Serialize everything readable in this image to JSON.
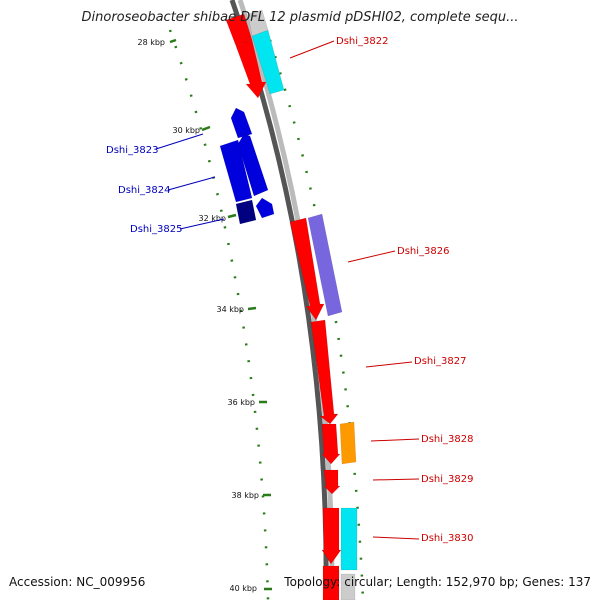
{
  "title": "Dinoroseobacter shibae DFL 12 plasmid pDSHI02, complete sequ...",
  "footer": {
    "accession": "Accession: NC_009956",
    "topology": "Topology: circular; Length: 152,970 bp; Genes: 137"
  },
  "colors": {
    "backbone_outer": "#555555",
    "backbone_inner": "#bbbbbb",
    "tick_marks": "#2a7a1a",
    "forward_label": "#cc0000",
    "reverse_label": "#0000bb",
    "red_gene": "#ff0000",
    "cyan_feature": "#00e5f0",
    "purple_feature": "#7766dd",
    "orange_feature": "#ff9900",
    "blue_gene": "#0000dd",
    "navy_gene": "#000080"
  },
  "ticks": [
    "28 kbp",
    "30 kbp",
    "32 kbp",
    "34 kbp",
    "36 kbp",
    "38 kbp",
    "40 kbp"
  ],
  "genes": [
    {
      "name": "Dshi_3822",
      "strand": "forward",
      "color": "#ff0000",
      "track": "cyan"
    },
    {
      "name": "Dshi_3823",
      "strand": "reverse",
      "color": "#0000dd"
    },
    {
      "name": "Dshi_3824",
      "strand": "reverse",
      "color": "#0000dd"
    },
    {
      "name": "Dshi_3825",
      "strand": "reverse",
      "color": "#000080"
    },
    {
      "name": "Dshi_3826",
      "strand": "forward",
      "color": "#ff0000",
      "track": "purple"
    },
    {
      "name": "Dshi_3827",
      "strand": "forward",
      "color": "#ff0000"
    },
    {
      "name": "Dshi_3828",
      "strand": "forward",
      "color": "#ff0000",
      "track": "orange"
    },
    {
      "name": "Dshi_3829",
      "strand": "forward",
      "color": "#ff0000"
    },
    {
      "name": "Dshi_3830",
      "strand": "forward",
      "color": "#ff0000",
      "track": "cyan"
    }
  ]
}
